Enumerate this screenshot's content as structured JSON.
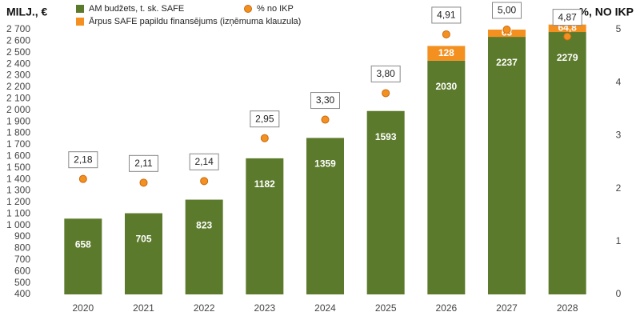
{
  "chart_data": {
    "type": "bar",
    "y_axis_title": "MILJ., €",
    "y2_axis_title": "%, NO IKP",
    "categories": [
      "2020",
      "2021",
      "2022",
      "2023",
      "2024",
      "2025",
      "2026",
      "2027",
      "2028"
    ],
    "series": [
      {
        "name": "AM budžets, t. sk. SAFE",
        "color": "#5c7a2c",
        "stacked": true,
        "values": [
          658,
          705,
          823,
          1182,
          1359,
          1593,
          2030,
          2237,
          2279
        ]
      },
      {
        "name": "Ārpus SAFE papildu finansējums (izņēmuma klauzula)",
        "color": "#f39020",
        "stacked": true,
        "values": [
          null,
          null,
          null,
          null,
          null,
          null,
          128,
          63,
          64.8
        ],
        "value_labels": [
          null,
          null,
          null,
          null,
          null,
          null,
          "128",
          "63",
          "64,8"
        ]
      },
      {
        "name": "% no IKP",
        "color": "#f39020",
        "axis": "y2",
        "marker": "circle",
        "values": [
          2.18,
          2.11,
          2.14,
          2.95,
          3.3,
          3.8,
          4.91,
          5.0,
          4.87
        ],
        "value_labels": [
          "2,18",
          "2,11",
          "2,14",
          "2,95",
          "3,30",
          "3,80",
          "4,91",
          "5,00",
          "4,87"
        ]
      }
    ],
    "ylim": [
      400,
      2700
    ],
    "yticks": [
      400,
      500,
      600,
      700,
      800,
      900,
      {
        "value": 1000,
        "label": "1 000"
      },
      {
        "value": 1100,
        "label": "1 100"
      },
      {
        "value": 1200,
        "label": "1 200"
      },
      {
        "value": 1300,
        "label": "1 300"
      },
      {
        "value": 1400,
        "label": "1 400"
      },
      {
        "value": 1500,
        "label": "1 500"
      },
      {
        "value": 1600,
        "label": "1 600"
      },
      {
        "value": 1700,
        "label": "1 700"
      },
      {
        "value": 1800,
        "label": "1 800"
      },
      {
        "value": 1900,
        "label": "1 900"
      },
      {
        "value": 2000,
        "label": "2 000"
      },
      {
        "value": 2100,
        "label": "2 100"
      },
      {
        "value": 2200,
        "label": "2 200"
      },
      {
        "value": 2300,
        "label": "2 300"
      },
      {
        "value": 2400,
        "label": "2 400"
      },
      {
        "value": 2500,
        "label": "2 500"
      },
      {
        "value": 2600,
        "label": "2 600"
      },
      {
        "value": 2700,
        "label": "2 700"
      }
    ],
    "y2lim": [
      0,
      5
    ],
    "y2ticks": [
      0,
      1,
      2,
      3,
      4,
      5
    ],
    "grid": false
  }
}
